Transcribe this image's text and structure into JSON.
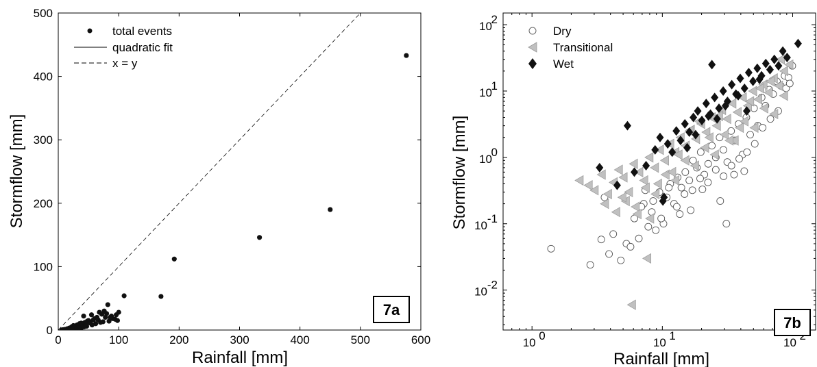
{
  "chart_data": [
    {
      "type": "scatter",
      "panel": "7a",
      "xlabel": "Rainfall [mm]",
      "ylabel": "Stormflow [mm]",
      "xlim": [
        0,
        600
      ],
      "ylim": [
        0,
        500
      ],
      "x_ticks": [
        0,
        100,
        200,
        300,
        400,
        500,
        600
      ],
      "y_ticks": [
        0,
        100,
        200,
        300,
        400,
        500
      ],
      "legend": {
        "position": "top-left",
        "entries": [
          "total events",
          "quadratic fit",
          "x = y"
        ]
      },
      "series": [
        {
          "name": "total events",
          "marker": "filled-circle",
          "x": [
            576,
            450,
            333,
            192,
            170,
            109,
            82,
            100,
            96,
            88,
            80,
            76,
            72,
            68,
            64,
            60,
            58,
            55,
            52,
            50,
            48,
            46,
            44,
            42,
            40,
            38,
            36,
            35,
            33,
            31,
            30,
            28,
            26,
            25,
            24,
            22,
            21,
            20,
            19,
            18,
            17,
            16,
            15,
            14,
            13,
            12,
            11,
            10,
            9,
            8,
            7,
            6,
            90,
            84,
            78,
            70,
            62,
            56,
            47,
            43,
            39,
            34,
            29,
            27,
            23,
            45,
            53,
            66,
            74,
            86,
            94,
            98
          ],
          "y": [
            433,
            190,
            146,
            112,
            53,
            54,
            40,
            28,
            24,
            22,
            26,
            30,
            25,
            28,
            20,
            18,
            16,
            24,
            13,
            15,
            14,
            10,
            12,
            22,
            8,
            11,
            7,
            10,
            6,
            8,
            5,
            6,
            4,
            7,
            3,
            5,
            4,
            3,
            2,
            3,
            2,
            1.5,
            2,
            1,
            1.2,
            1,
            0.8,
            0.7,
            0.5,
            0.4,
            0.3,
            0.2,
            18,
            14,
            20,
            12,
            10,
            8,
            6,
            5,
            4,
            3,
            2,
            4,
            2,
            9,
            11,
            16,
            13,
            20,
            17,
            15
          ]
        },
        {
          "name": "x = y",
          "style": "dashed",
          "x": [
            0,
            500
          ],
          "y": [
            0,
            500
          ]
        }
      ]
    },
    {
      "type": "scatter",
      "panel": "7b",
      "xlabel": "Rainfall [mm]",
      "ylabel": "Stormflow [mm]",
      "x_scale": "log",
      "y_scale": "log",
      "xlim": [
        0.6,
        150
      ],
      "ylim": [
        0.0025,
        150
      ],
      "x_ticks": [
        1,
        10,
        100
      ],
      "y_ticks": [
        0.01,
        0.1,
        1,
        10,
        100
      ],
      "x_tick_labels": [
        [
          "10",
          "0"
        ],
        [
          "10",
          "1"
        ],
        [
          "10",
          "2"
        ]
      ],
      "y_tick_labels": [
        [
          "10",
          "-2"
        ],
        [
          "10",
          "-1"
        ],
        [
          "10",
          "0"
        ],
        [
          "10",
          "1"
        ],
        [
          "10",
          "2"
        ]
      ],
      "legend": {
        "position": "top-left",
        "entries": [
          "Dry",
          "Transitional",
          "Wet"
        ]
      },
      "series": [
        {
          "name": "Dry",
          "marker": "open-circle",
          "x": [
            1.4,
            2.8,
            3.4,
            3.9,
            4.2,
            4.8,
            5.3,
            5.7,
            6.1,
            6.6,
            7.2,
            7.8,
            8.3,
            8.9,
            9.5,
            10.2,
            10.8,
            11.5,
            12.3,
            13.1,
            14.0,
            15.0,
            16.1,
            17.2,
            18.4,
            19.7,
            21.0,
            22.5,
            24.0,
            25.7,
            27.5,
            29.4,
            31.5,
            33.7,
            36.0,
            38.5,
            41.2,
            44.1,
            47.2,
            50.5,
            54.0,
            57.8,
            61.8,
            66.1,
            70.8,
            75.7,
            81.0,
            86.7,
            92.8,
            99.3,
            8.5,
            9.8,
            11.2,
            12.9,
            14.8,
            17.0,
            19.5,
            22.4,
            25.7,
            29.5,
            33.9,
            38.9,
            44.6,
            51.2,
            58.8,
            67.5,
            77.5,
            89.0,
            7.4,
            13.6,
            20.3,
            31.0,
            42.5,
            3.6,
            6.9,
            16.5,
            27.8,
            35.5,
            95.0
          ],
          "y": [
            0.042,
            0.024,
            0.058,
            0.035,
            0.07,
            0.028,
            0.05,
            0.045,
            0.12,
            0.06,
            0.2,
            0.09,
            0.15,
            0.08,
            0.3,
            0.1,
            0.25,
            0.4,
            0.2,
            0.5,
            0.35,
            0.6,
            0.45,
            0.9,
            0.7,
            1.2,
            0.55,
            0.8,
            1.5,
            1.0,
            2.0,
            1.3,
            0.85,
            2.5,
            1.8,
            3.2,
            1.1,
            4.0,
            2.2,
            5.5,
            3.0,
            8.0,
            6.0,
            10.5,
            9.0,
            14.0,
            12.0,
            17.0,
            16.0,
            24.0,
            0.22,
            0.12,
            0.35,
            0.18,
            0.28,
            0.32,
            0.48,
            0.42,
            0.65,
            0.52,
            0.75,
            0.95,
            1.2,
            1.6,
            2.8,
            3.8,
            5.0,
            11.0,
            0.32,
            0.14,
            0.33,
            0.1,
            0.62,
            0.25,
            0.18,
            0.16,
            0.22,
            0.55,
            13.0
          ]
        },
        {
          "name": "Transitional",
          "marker": "gray-left-triangle",
          "x": [
            2.3,
            2.7,
            3.0,
            3.4,
            3.8,
            4.2,
            4.6,
            5.0,
            5.5,
            6.0,
            6.6,
            7.2,
            7.9,
            8.7,
            9.5,
            10.4,
            11.4,
            12.5,
            13.7,
            15.0,
            16.4,
            18.0,
            19.7,
            21.6,
            23.7,
            26.0,
            28.5,
            31.2,
            34.2,
            37.5,
            41.1,
            45.0,
            49.3,
            54.0,
            59.2,
            64.9,
            71.1,
            77.9,
            85.4,
            93.6,
            4.4,
            5.2,
            6.2,
            7.4,
            8.8,
            10.5,
            12.5,
            14.9,
            17.7,
            21.1,
            25.1,
            29.9,
            35.6,
            42.4,
            50.5,
            60.1,
            71.6,
            85.2,
            6.4,
            8.0,
            9.2,
            11.8,
            13.2,
            16.0,
            19.0,
            22.8,
            27.0,
            32.5,
            39.0,
            46.8,
            56.0,
            67.2,
            80.6,
            7.6,
            5.8,
            4.9,
            3.6
          ],
          "y": [
            0.45,
            0.38,
            0.32,
            0.55,
            0.28,
            0.42,
            0.65,
            0.5,
            0.3,
            0.8,
            0.6,
            0.45,
            1.0,
            0.7,
            1.3,
            0.9,
            1.6,
            1.2,
            2.0,
            1.5,
            2.6,
            1.9,
            3.2,
            2.4,
            4.0,
            3.0,
            5.2,
            3.8,
            6.5,
            4.8,
            8.0,
            6.0,
            10.0,
            7.5,
            12.5,
            9.5,
            15.5,
            12.0,
            20.0,
            25.0,
            0.15,
            0.22,
            0.18,
            0.35,
            0.28,
            0.55,
            0.45,
            0.9,
            0.75,
            1.4,
            1.1,
            2.2,
            1.8,
            3.5,
            2.8,
            5.5,
            4.5,
            8.5,
            0.14,
            0.12,
            0.4,
            0.6,
            1.1,
            2.5,
            3.5,
            2.0,
            4.2,
            1.8,
            2.8,
            7.0,
            11.0,
            14.0,
            30.0,
            0.03,
            0.006,
            0.25,
            0.2
          ]
        },
        {
          "name": "Wet",
          "marker": "black-diamond",
          "x": [
            3.3,
            4.5,
            5.4,
            6.1,
            7.5,
            8.8,
            9.6,
            10.3,
            11.0,
            11.9,
            12.8,
            13.8,
            14.9,
            16.1,
            17.3,
            18.7,
            20.1,
            21.7,
            23.4,
            25.2,
            27.2,
            29.3,
            31.6,
            34.1,
            36.7,
            39.6,
            42.7,
            46.0,
            49.6,
            53.5,
            57.7,
            62.2,
            67.0,
            72.3,
            77.9,
            84.0,
            90.6,
            110.0,
            10.1,
            15.5,
            22.6,
            26.3,
            30.5,
            38.2,
            44.4,
            55.6,
            24.0,
            18.0
          ],
          "y": [
            0.7,
            0.38,
            3.0,
            0.6,
            0.75,
            1.3,
            2.0,
            0.25,
            1.6,
            1.2,
            2.5,
            1.8,
            3.2,
            2.4,
            4.0,
            5.0,
            3.6,
            6.5,
            4.5,
            8.0,
            5.5,
            10.0,
            7.0,
            12.5,
            9.0,
            15.5,
            11.0,
            19.0,
            14.0,
            22.0,
            17.0,
            26.0,
            21.0,
            30.0,
            24.0,
            40.0,
            32.0,
            52.0,
            0.22,
            1.4,
            4.2,
            3.8,
            6.0,
            8.5,
            5.0,
            15.0,
            25.0,
            2.2
          ]
        }
      ]
    }
  ],
  "panel_a": {
    "tag": "7a",
    "xlabel": "Rainfall [mm]",
    "ylabel": "Stormflow [mm]",
    "legend": [
      "total events",
      "quadratic fit",
      "x = y"
    ]
  },
  "panel_b": {
    "tag": "7b",
    "xlabel": "Rainfall [mm]",
    "ylabel": "Stormflow [mm]",
    "legend": [
      "Dry",
      "Transitional",
      "Wet"
    ]
  }
}
